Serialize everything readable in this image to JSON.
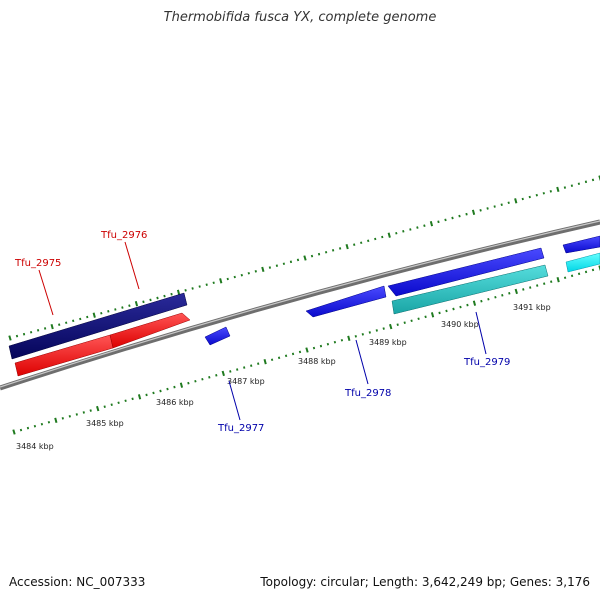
{
  "title": "Thermobifida fusca YX, complete genome",
  "footer": {
    "accession": "Accession: NC_007333",
    "summary": "Topology: circular; Length: 3,642,249 bp; Genes: 3,176"
  },
  "colors": {
    "background": "#ffffff",
    "backbone": "#8a8a8a",
    "tick": "#1f7a1f",
    "label_top": "#cc0000",
    "label_bottom": "#0000aa"
  },
  "kbp_labels": [
    "3484 kbp",
    "3485 kbp",
    "3486 kbp",
    "3487 kbp",
    "3488 kbp",
    "3489 kbp",
    "3490 kbp",
    "3491 kbp"
  ],
  "genes": [
    {
      "name": "Tfu_2975",
      "strand": "reverse",
      "color": "#ff0000"
    },
    {
      "name": "Tfu_2976",
      "strand": "reverse",
      "color": "#ff0000"
    },
    {
      "name": "Tfu_2977",
      "strand": "forward",
      "color": "#1a1aff"
    },
    {
      "name": "Tfu_2978",
      "strand": "forward",
      "color": "#1a1aff"
    },
    {
      "name": "Tfu_2979",
      "strand": "forward",
      "color": "#1a1aff"
    }
  ]
}
